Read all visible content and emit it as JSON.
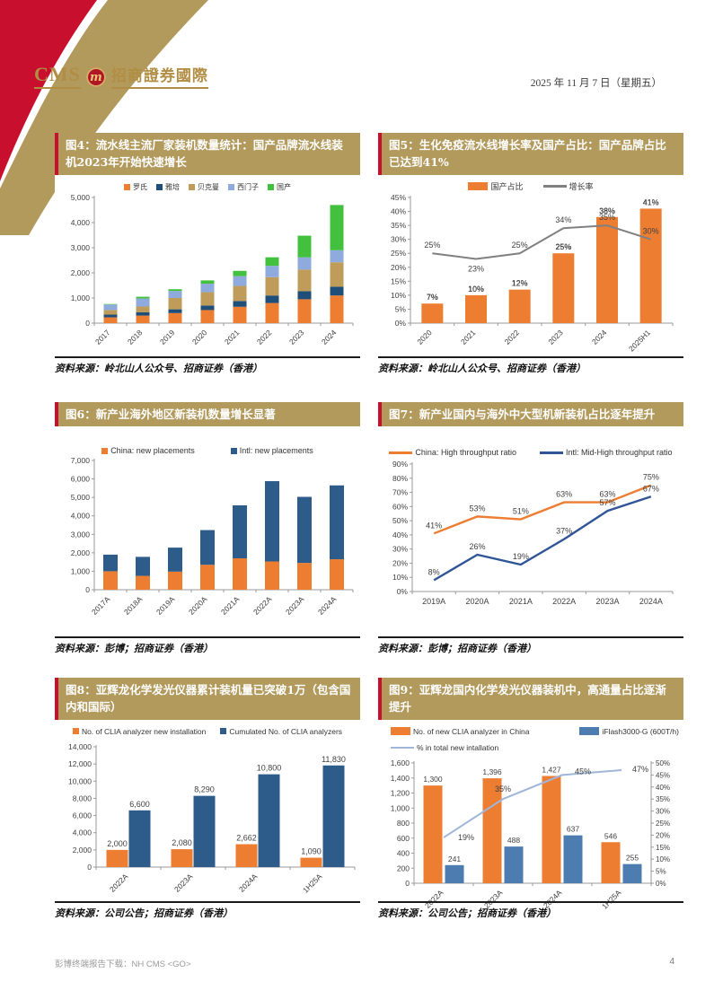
{
  "page": {
    "date": "2025 年 11 月 7 日（星期五）",
    "footer_download": "彭博终端报告下载：NH CMS <GO>",
    "page_number": "4"
  },
  "logo": {
    "cms": "CMS",
    "monogram": "m",
    "name_zh": "招商證券國際"
  },
  "colors": {
    "ribbon_red": "#C8102E",
    "title_bar_gold": "#B2995C",
    "logo_gold": "#B28E44",
    "orange": "#ED7D31",
    "navy": "#1F4E79",
    "tan": "#BF9C5A",
    "light_blue": "#8FAADC",
    "green": "#42C03E",
    "gray_line": "#808080",
    "steel_blue": "#2E5C8A",
    "mid_blue": "#4C7CB0",
    "pale_blue_line": "#9FB6D9"
  },
  "chart_data": [
    {
      "type": "stacked-bar",
      "title": "图4：流水线主流厂家装机数量统计：国产品牌流水线装机2023年开始快速增长",
      "source": "资料来源：岭北山人公众号、招商证券（香港）",
      "categories": [
        "2017",
        "2018",
        "2019",
        "2020",
        "2021",
        "2022",
        "2023",
        "2024"
      ],
      "series": [
        {
          "name": "罗氏",
          "color": "#ED7D31",
          "type": "bar",
          "swatch": "square",
          "values": [
            230,
            300,
            400,
            520,
            650,
            800,
            950,
            1100
          ]
        },
        {
          "name": "雅培",
          "color": "#1F4E79",
          "type": "bar",
          "swatch": "square",
          "values": [
            110,
            130,
            150,
            180,
            230,
            300,
            320,
            350
          ]
        },
        {
          "name": "贝克曼",
          "color": "#BF9C5A",
          "type": "bar",
          "swatch": "square",
          "values": [
            180,
            230,
            450,
            530,
            600,
            730,
            860,
            970
          ]
        },
        {
          "name": "西门子",
          "color": "#8FAADC",
          "type": "bar",
          "swatch": "square",
          "values": [
            220,
            320,
            280,
            340,
            390,
            450,
            490,
            480
          ]
        },
        {
          "name": "国产",
          "color": "#42C03E",
          "type": "bar",
          "swatch": "square",
          "values": [
            20,
            70,
            70,
            130,
            210,
            340,
            860,
            1800
          ]
        }
      ],
      "ylim": [
        0,
        5000
      ],
      "ystep": 1000,
      "yfmt": "comma",
      "grid": false,
      "legend_position": "top"
    },
    {
      "type": "bar-line",
      "title": "图5：生化免疫流水线增长率及国产占比：国产品牌占比已达到41%",
      "source": "资料来源：岭北山人公众号、招商证券（香港）",
      "categories": [
        "2020",
        "2021",
        "2022",
        "2023",
        "2024",
        "2025H1"
      ],
      "series": [
        {
          "name": "国产占比",
          "color": "#ED7D31",
          "type": "bar",
          "swatch": "bar",
          "values": [
            7,
            10,
            12,
            25,
            38,
            41
          ],
          "labels": "pct"
        },
        {
          "name": "增长率",
          "color": "#808080",
          "type": "line",
          "swatch": "line",
          "values": [
            25,
            23,
            25,
            34,
            35,
            30
          ],
          "labels": "pct"
        }
      ],
      "ylim": [
        0,
        45
      ],
      "ystep": 5,
      "yfmt": "pct",
      "grid": false,
      "legend_position": "top"
    },
    {
      "type": "stacked-bar",
      "title": "图6：新产业海外地区新装机数量增长显著",
      "source": "资料来源：彭博；招商证券（香港）",
      "categories": [
        "2017A",
        "2018A",
        "2019A",
        "2020A",
        "2021A",
        "2022A",
        "2023A",
        "2024A"
      ],
      "series": [
        {
          "name": "China: new placements",
          "color": "#ED7D31",
          "type": "bar",
          "swatch": "square",
          "values": [
            1000,
            750,
            980,
            1350,
            1700,
            1530,
            1450,
            1650
          ]
        },
        {
          "name": "Intl: new placements",
          "color": "#2E5C8A",
          "type": "bar",
          "swatch": "square",
          "values": [
            900,
            1030,
            1300,
            1880,
            2870,
            4350,
            3580,
            4000
          ]
        }
      ],
      "ylim": [
        0,
        7000
      ],
      "ystep": 1000,
      "yfmt": "comma",
      "grid": false,
      "legend_position": "top"
    },
    {
      "type": "line",
      "title": "图7：新产业国内与海外中大型机新装机占比逐年提升",
      "source": "资料来源：彭博；招商证券（香港）",
      "categories": [
        "2019A",
        "2020A",
        "2021A",
        "2022A",
        "2023A",
        "2024A"
      ],
      "series": [
        {
          "name": "China: High throughput ratio",
          "color": "#ED7D31",
          "type": "line",
          "swatch": "line",
          "values": [
            41,
            53,
            51,
            63,
            63,
            75
          ],
          "labels": "pct"
        },
        {
          "name": "Intl: Mid-High throughput ratio",
          "color": "#2F5597",
          "type": "line",
          "swatch": "line",
          "values": [
            8,
            26,
            19,
            37,
            57,
            67
          ],
          "labels": "pct"
        }
      ],
      "ylim": [
        0,
        90
      ],
      "ystep": 10,
      "yfmt": "pct",
      "grid": false,
      "legend_position": "top"
    },
    {
      "type": "grouped-bar",
      "title": "图8：亚辉龙化学发光仪器累计装机量已突破1万（包含国内和国际）",
      "source": "资料来源：公司公告；招商证券（香港）",
      "categories": [
        "2022A",
        "2023A",
        "2024A",
        "1H25A"
      ],
      "series": [
        {
          "name": "No. of CLIA analyzer new installation",
          "color": "#ED7D31",
          "type": "bar",
          "swatch": "square",
          "values": [
            2000,
            2080,
            2662,
            1090
          ],
          "labels": "comma"
        },
        {
          "name": "Cumulated No. of CLIA analyzers",
          "color": "#2E5C8A",
          "type": "bar",
          "swatch": "square",
          "values": [
            6600,
            8290,
            10800,
            11830
          ],
          "labels": "comma"
        }
      ],
      "ylim": [
        0,
        14000
      ],
      "ystep": 2000,
      "yfmt": "comma",
      "grid": false,
      "legend_position": "top"
    },
    {
      "type": "grouped-bar-line",
      "title": "图9：亚辉龙国内化学发光仪器装机中，高通量占比逐渐提升",
      "source": "资料来源：公司公告；招商证券（香港）",
      "categories": [
        "2022A",
        "2023A",
        "2024A",
        "1H25A"
      ],
      "series": [
        {
          "name": "No. of new CLIA analyzer in China",
          "color": "#ED7D31",
          "type": "bar",
          "swatch": "bar",
          "values": [
            1300,
            1396,
            1427,
            546
          ],
          "labels": "comma"
        },
        {
          "name": "iFlash3000-G (600T/h)",
          "color": "#4C7CB0",
          "type": "bar",
          "swatch": "bar",
          "values": [
            241,
            488,
            637,
            255
          ],
          "labels": "comma"
        },
        {
          "name": "% in total new intallation",
          "color": "#9FB6D9",
          "type": "line",
          "swatch": "line",
          "axis": "y2",
          "values": [
            19,
            35,
            45,
            47
          ],
          "labels": "pct"
        }
      ],
      "ylim": [
        0,
        1600
      ],
      "ystep": 200,
      "yfmt": "comma",
      "y2lim": [
        0,
        50
      ],
      "y2step": 5,
      "y2fmt": "pct",
      "grid": false,
      "legend_position": "top"
    }
  ]
}
